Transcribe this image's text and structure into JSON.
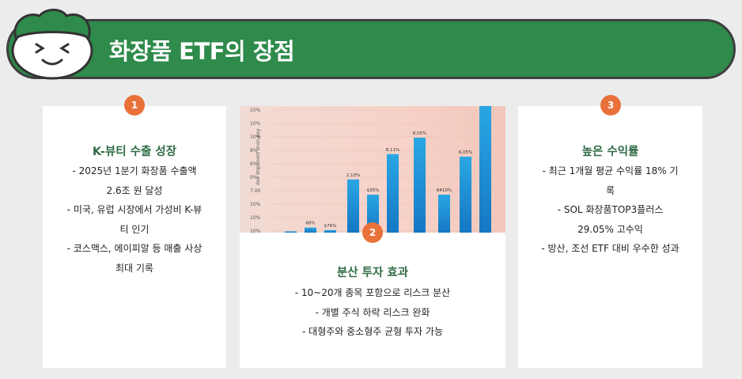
{
  "header": {
    "title": "화장품 ETF의 장점"
  },
  "cards": [
    {
      "number": "1",
      "title": "K-뷰티 수출 성장",
      "lines": [
        "- 2025년 1분기 화장품 수출액",
        "2.6조 원 달성",
        "- 미국, 유럽 시장에서 가성비 K-뷰",
        "티 인기",
        "- 코스맥스, 에이피알 등 매출 사상",
        "최대 기록"
      ]
    },
    {
      "number": "2",
      "title": "분산 투자 효과",
      "lines": [
        "- 10~20개 종목 포함으로 리스크 분산",
        "- 개별 주식 하락 리스크 완화",
        "- 대형주와 중소형주 균형 투자 가능"
      ]
    },
    {
      "number": "3",
      "title": "높은 수익률",
      "lines": [
        "- 최근 1개월 평균 수익률 18% 기",
        "록",
        "- SOL 화장품TOP3플러스",
        "29.05% 고수익",
        "- 방산, 조선 ETF 대비 우수한 성과"
      ]
    }
  ],
  "chart_data": {
    "type": "bar",
    "ylabel": "doe lrnpanvnt snon-pay",
    "y_ticks": [
      "10%",
      "10%",
      "10%",
      "8%",
      "6%",
      "0%",
      "7.00",
      "10%",
      "10%",
      "10%"
    ],
    "values": [
      1,
      4,
      2,
      42,
      30,
      62,
      75,
      30,
      60,
      100
    ],
    "data_labels": [
      "",
      "68%",
      "$76%",
      "2,10%",
      "$35%",
      "8,11%",
      "8,05%",
      "6410%",
      "6,05%",
      ""
    ],
    "colors": {
      "bar_top": "#2aa7e4",
      "bar_bottom": "#1577c4"
    }
  },
  "colors": {
    "green": "#2e8b4b",
    "badge": "#e8713a",
    "title_green": "#2f6b45"
  }
}
